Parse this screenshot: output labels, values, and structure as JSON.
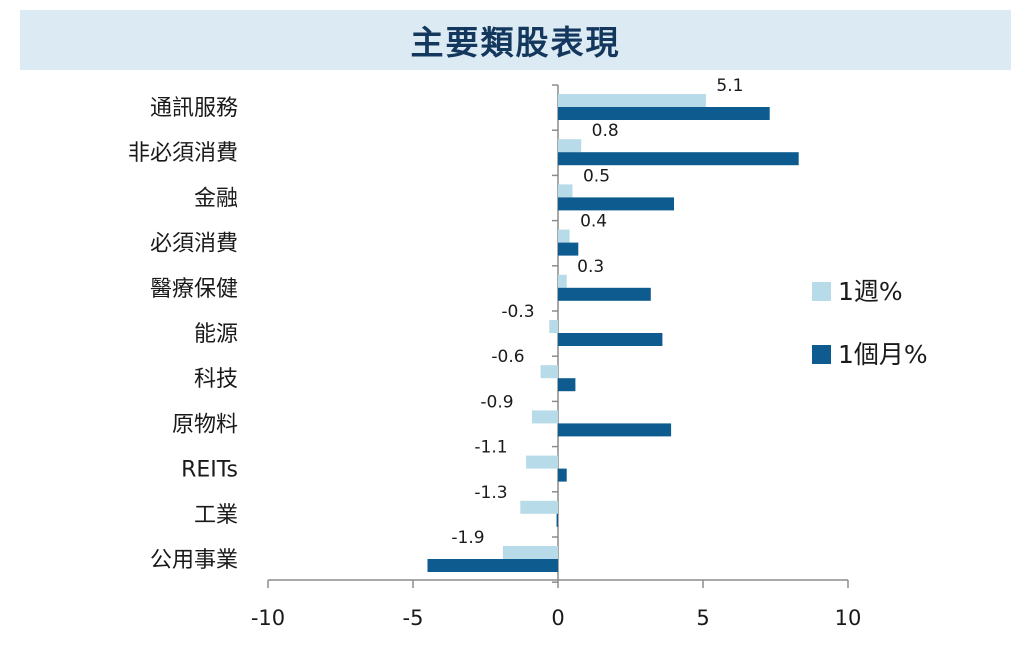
{
  "title": "主要類股表現",
  "chart_data": {
    "type": "bar",
    "orientation": "horizontal",
    "title": "主要類股表現",
    "categories": [
      "通訊服務",
      "非必須消費",
      "金融",
      "必須消費",
      "醫療保健",
      "能源",
      "科技",
      "原物料",
      "REITs",
      "工業",
      "公用事業"
    ],
    "series": [
      {
        "name": "1週%",
        "color": "#b7dbe8",
        "values": [
          5.1,
          0.8,
          0.5,
          0.4,
          0.3,
          -0.3,
          -0.6,
          -0.9,
          -1.1,
          -1.3,
          -1.9
        ],
        "labels": [
          "5.1",
          "0.8",
          "0.5",
          "0.4",
          "0.3",
          "-0.3",
          "-0.6",
          "-0.9",
          "-1.1",
          "-1.3",
          "-1.9"
        ]
      },
      {
        "name": "1個月%",
        "color": "#0d5b8f",
        "values": [
          7.3,
          8.3,
          4.0,
          0.7,
          3.2,
          3.6,
          0.6,
          3.9,
          0.3,
          -0.05,
          -4.5
        ]
      }
    ],
    "xlim": [
      -10,
      10
    ],
    "xticks": [
      "-10",
      "-5",
      "0",
      "5",
      "10"
    ],
    "grid": false,
    "legend_position": "right"
  }
}
